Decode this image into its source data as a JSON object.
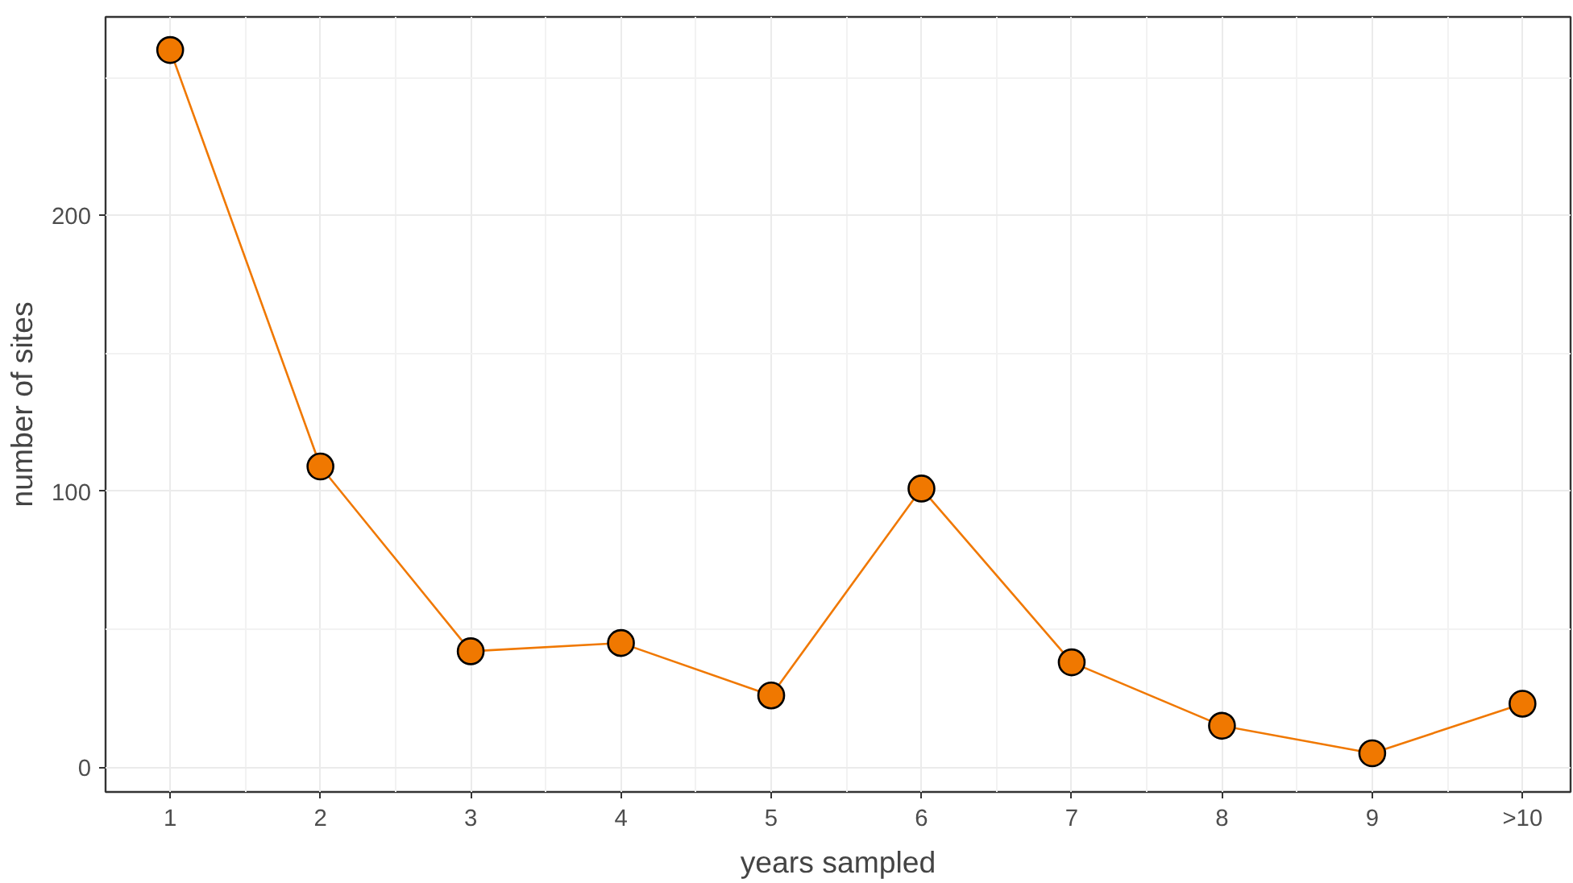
{
  "chart_data": {
    "type": "line",
    "xlabel": "years sampled",
    "ylabel": "number of sites",
    "categories": [
      "1",
      "2",
      "3",
      "4",
      "5",
      "6",
      "7",
      "8",
      "9",
      ">10"
    ],
    "series": [
      {
        "color": "#f07800",
        "values": [
          260,
          109,
          42,
          45,
          26,
          101,
          38,
          15,
          5,
          23
        ]
      }
    ],
    "ylim": [
      -9,
      272
    ],
    "yticks": [
      0,
      100,
      200
    ],
    "grid": true,
    "marker": "circle",
    "line_style": "solid"
  }
}
